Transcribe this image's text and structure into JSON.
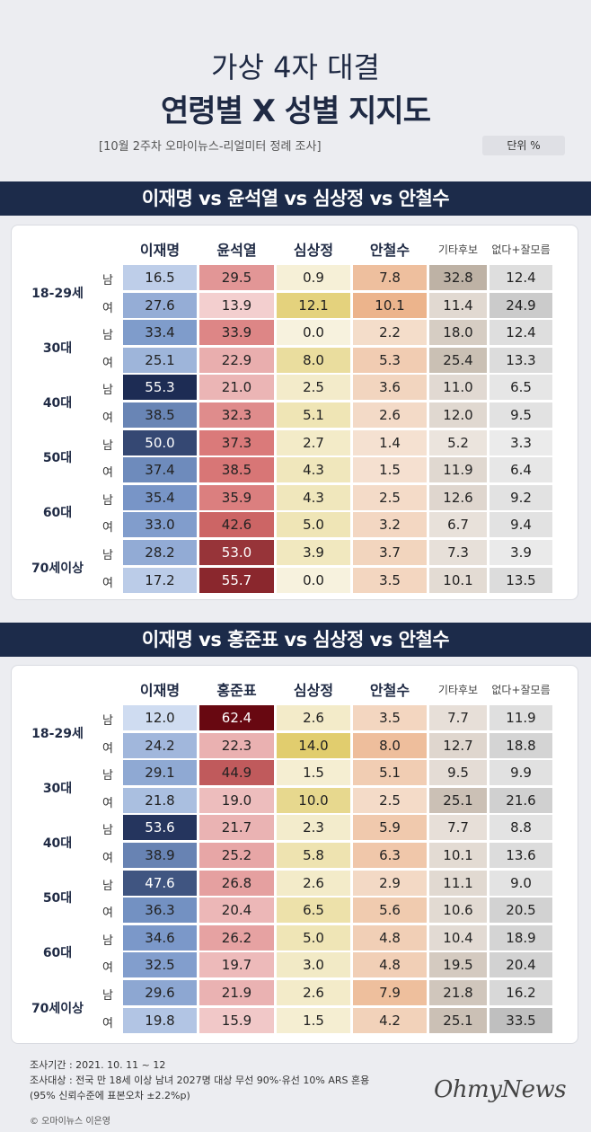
{
  "header": {
    "title_line1": "가상 4자 대결",
    "title_line2": "연령별 X 성별 지지도",
    "subtitle": "[10월 2주차 오마이뉴스-리얼미터 정례 조사]",
    "unit": "단위 %"
  },
  "age_groups": [
    "18-29세",
    "30대",
    "40대",
    "50대",
    "60대",
    "70세이상"
  ],
  "sexes": [
    "남",
    "여"
  ],
  "chart_data": [
    {
      "type": "table",
      "title": "이재명 vs 윤석열 vs 심상정 vs 안철수",
      "columns": [
        "이재명",
        "윤석열",
        "심상정",
        "안철수",
        "기타후보",
        "없다+잘모름"
      ],
      "row_labels": [
        "18-29세 남",
        "18-29세 여",
        "30대 남",
        "30대 여",
        "40대 남",
        "40대 여",
        "50대 남",
        "50대 여",
        "60대 남",
        "60대 여",
        "70세이상 남",
        "70세이상 여"
      ],
      "values": [
        [
          16.5,
          29.5,
          0.9,
          7.8,
          32.8,
          12.4
        ],
        [
          27.6,
          13.9,
          12.1,
          10.1,
          11.4,
          24.9
        ],
        [
          33.4,
          33.9,
          0.0,
          2.2,
          18.0,
          12.4
        ],
        [
          25.1,
          22.9,
          8.0,
          5.3,
          25.4,
          13.3
        ],
        [
          55.3,
          21.0,
          2.5,
          3.6,
          11.0,
          6.5
        ],
        [
          38.5,
          32.3,
          5.1,
          2.6,
          12.0,
          9.5
        ],
        [
          50.0,
          37.3,
          2.7,
          1.4,
          5.2,
          3.3
        ],
        [
          37.4,
          38.5,
          4.3,
          1.5,
          11.9,
          6.4
        ],
        [
          35.4,
          35.9,
          4.3,
          2.5,
          12.6,
          9.2
        ],
        [
          33.0,
          42.6,
          5.0,
          3.2,
          6.7,
          9.4
        ],
        [
          28.2,
          53.0,
          3.9,
          3.7,
          7.3,
          3.9
        ],
        [
          17.2,
          55.7,
          0.0,
          3.5,
          10.1,
          13.5
        ]
      ]
    },
    {
      "type": "table",
      "title": "이재명 vs 홍준표 vs 심상정 vs 안철수",
      "columns": [
        "이재명",
        "홍준표",
        "심상정",
        "안철수",
        "기타후보",
        "없다+잘모름"
      ],
      "row_labels": [
        "18-29세 남",
        "18-29세 여",
        "30대 남",
        "30대 여",
        "40대 남",
        "40대 여",
        "50대 남",
        "50대 여",
        "60대 남",
        "60대 여",
        "70세이상 남",
        "70세이상 여"
      ],
      "values": [
        [
          12.0,
          62.4,
          2.6,
          3.5,
          7.7,
          11.9
        ],
        [
          24.2,
          22.3,
          14.0,
          8.0,
          12.7,
          18.8
        ],
        [
          29.1,
          44.9,
          1.5,
          5.1,
          9.5,
          9.9
        ],
        [
          21.8,
          19.0,
          10.0,
          2.5,
          25.1,
          21.6
        ],
        [
          53.6,
          21.7,
          2.3,
          5.9,
          7.7,
          8.8
        ],
        [
          38.9,
          25.2,
          5.8,
          6.3,
          10.1,
          13.6
        ],
        [
          47.6,
          26.8,
          2.6,
          2.9,
          11.1,
          9.0
        ],
        [
          36.3,
          20.4,
          6.5,
          5.6,
          10.6,
          20.5
        ],
        [
          34.6,
          26.2,
          5.0,
          4.8,
          10.4,
          18.9
        ],
        [
          32.5,
          19.7,
          3.0,
          4.8,
          19.5,
          20.4
        ],
        [
          29.6,
          21.9,
          2.6,
          7.9,
          21.8,
          16.2
        ],
        [
          19.8,
          15.9,
          1.5,
          4.2,
          25.1,
          33.5
        ]
      ]
    }
  ],
  "footer": {
    "line1": "조사기간 : 2021. 10. 11 ~ 12",
    "line2": "조사대상 : 전국 만 18세 이상 남녀 2027명 대상 무선 90%·유선 10% ARS 혼용",
    "line3": "(95% 신뢰수준에 표본오차 ±2.2%p)",
    "copyright": "© 오마이뉴스 이은영",
    "logo": "OhmyNews"
  }
}
